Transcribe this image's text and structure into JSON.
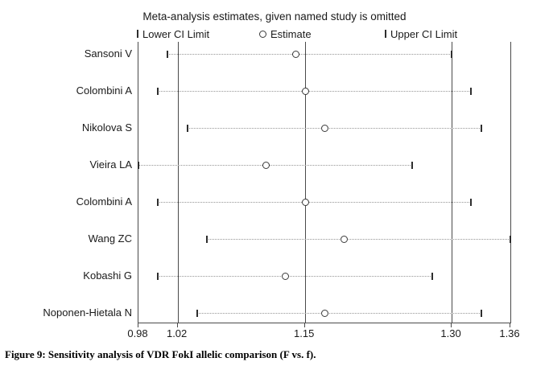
{
  "figure": {
    "title": "Meta-analysis estimates, given named study is omitted",
    "caption": "Figure 9: Sensitivity analysis of VDR FokI allelic comparison (F vs. f)."
  },
  "legend": {
    "lower": {
      "glyph": "|",
      "label": "Lower CI Limit"
    },
    "estimate": {
      "glyph": "○",
      "label": "Estimate"
    },
    "upper": {
      "glyph": "|",
      "label": "Upper CI Limit"
    }
  },
  "chart_data": {
    "type": "scatter",
    "variant": "sensitivity-forest-plot",
    "title": "Meta-analysis estimates, given named study is omitted",
    "legend_entries": [
      "Lower CI Limit",
      "Estimate",
      "Upper CI Limit"
    ],
    "x_axis": {
      "min": 0.98,
      "max": 1.36,
      "tick_values": [
        0.98,
        1.02,
        1.15,
        1.3,
        1.36
      ],
      "tick_labels": [
        "0.98",
        "1.02",
        "1.15",
        "1.30",
        "1.36"
      ],
      "reference_lines": [
        1.02,
        1.15,
        1.3
      ]
    },
    "grid": false,
    "studies": [
      {
        "name": "Sansoni V",
        "lower": 1.01,
        "estimate": 1.14,
        "upper": 1.3
      },
      {
        "name": "Colombini A",
        "lower": 1.0,
        "estimate": 1.15,
        "upper": 1.32
      },
      {
        "name": "Nikolova S",
        "lower": 1.03,
        "estimate": 1.17,
        "upper": 1.33
      },
      {
        "name": "Vieira LA",
        "lower": 0.98,
        "estimate": 1.11,
        "upper": 1.26
      },
      {
        "name": "Colombini A",
        "lower": 1.0,
        "estimate": 1.15,
        "upper": 1.32
      },
      {
        "name": "Wang ZC",
        "lower": 1.05,
        "estimate": 1.19,
        "upper": 1.36
      },
      {
        "name": "Kobashi G",
        "lower": 1.0,
        "estimate": 1.13,
        "upper": 1.28
      },
      {
        "name": "Noponen-Hietala N",
        "lower": 1.04,
        "estimate": 1.17,
        "upper": 1.33
      }
    ]
  },
  "colors": {
    "frame": "#4a4a4a",
    "marker": "#2e2e2e",
    "dotted_line": "#969696",
    "text": "#1a1a1a",
    "background": "#ffffff"
  }
}
